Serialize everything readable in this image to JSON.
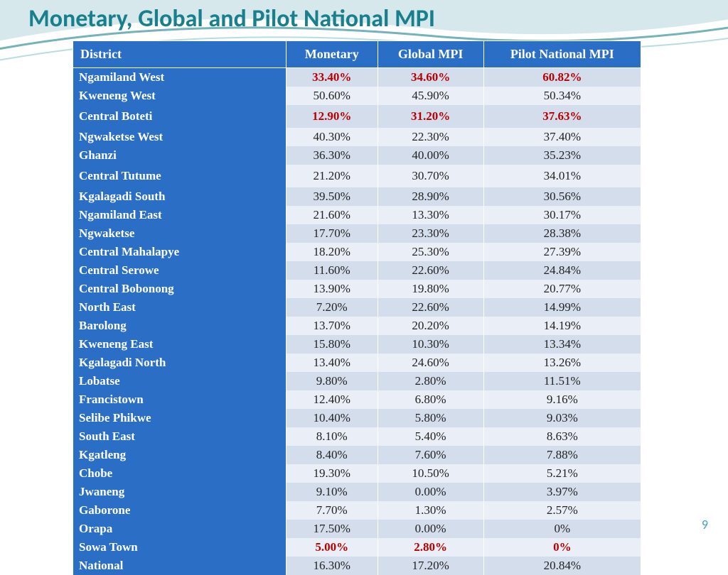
{
  "title": "Monetary, Global and Pilot National MPI",
  "page_number": "9",
  "columns": [
    "District",
    "Monetary",
    "Global MPI",
    "Pilot National MPI"
  ],
  "colors": {
    "header_bg": "#2a6ec6",
    "district_bg": "#2a6ec6",
    "row_even_bg": "#d4ddec",
    "row_odd_bg": "#eaeef6",
    "highlight_text": "#b80000",
    "title_color": "#17808c",
    "page_number_color": "#4aa5b0"
  },
  "rows": [
    {
      "district": "Ngamiland West",
      "monetary": "33.40%",
      "global": "34.60%",
      "pilot": "60.82%",
      "highlight": true,
      "sep": false
    },
    {
      "district": "Kweneng West",
      "monetary": "50.60%",
      "global": "45.90%",
      "pilot": "50.34%",
      "highlight": false,
      "sep": false
    },
    {
      "district": "Central Boteti",
      "monetary": "12.90%",
      "global": "31.20%",
      "pilot": "37.63%",
      "highlight": true,
      "sep": true
    },
    {
      "district": "Ngwaketse West",
      "monetary": "40.30%",
      "global": "22.30%",
      "pilot": "37.40%",
      "highlight": false,
      "sep": false
    },
    {
      "district": "Ghanzi",
      "monetary": "36.30%",
      "global": "40.00%",
      "pilot": "35.23%",
      "highlight": false,
      "sep": false
    },
    {
      "district": "Central Tutume",
      "monetary": "21.20%",
      "global": "30.70%",
      "pilot": "34.01%",
      "highlight": false,
      "sep": true
    },
    {
      "district": "Kgalagadi South",
      "monetary": "39.50%",
      "global": "28.90%",
      "pilot": "30.56%",
      "highlight": false,
      "sep": false
    },
    {
      "district": "Ngamiland East",
      "monetary": "21.60%",
      "global": "13.30%",
      "pilot": "30.17%",
      "highlight": false,
      "sep": false
    },
    {
      "district": "Ngwaketse",
      "monetary": "17.70%",
      "global": "23.30%",
      "pilot": "28.38%",
      "highlight": false,
      "sep": false
    },
    {
      "district": "Central Mahalapye",
      "monetary": "18.20%",
      "global": "25.30%",
      "pilot": "27.39%",
      "highlight": false,
      "sep": false
    },
    {
      "district": "Central Serowe",
      "monetary": "11.60%",
      "global": "22.60%",
      "pilot": "24.84%",
      "highlight": false,
      "sep": false
    },
    {
      "district": "Central Bobonong",
      "monetary": "13.90%",
      "global": "19.80%",
      "pilot": "20.77%",
      "highlight": false,
      "sep": false
    },
    {
      "district": "North East",
      "monetary": "7.20%",
      "global": "22.60%",
      "pilot": "14.99%",
      "highlight": false,
      "sep": false
    },
    {
      "district": "Barolong",
      "monetary": "13.70%",
      "global": "20.20%",
      "pilot": "14.19%",
      "highlight": false,
      "sep": false
    },
    {
      "district": "Kweneng East",
      "monetary": "15.80%",
      "global": "10.30%",
      "pilot": "13.34%",
      "highlight": false,
      "sep": false
    },
    {
      "district": "Kgalagadi North",
      "monetary": "13.40%",
      "global": "24.60%",
      "pilot": "13.26%",
      "highlight": false,
      "sep": false
    },
    {
      "district": "Lobatse",
      "monetary": "9.80%",
      "global": "2.80%",
      "pilot": "11.51%",
      "highlight": false,
      "sep": false
    },
    {
      "district": "Francistown",
      "monetary": "12.40%",
      "global": "6.80%",
      "pilot": "9.16%",
      "highlight": false,
      "sep": false
    },
    {
      "district": "Selibe Phikwe",
      "monetary": "10.40%",
      "global": "5.80%",
      "pilot": "9.03%",
      "highlight": false,
      "sep": false
    },
    {
      "district": "South East",
      "monetary": "8.10%",
      "global": "5.40%",
      "pilot": "8.63%",
      "highlight": false,
      "sep": false
    },
    {
      "district": "Kgatleng",
      "monetary": "8.40%",
      "global": "7.60%",
      "pilot": "7.88%",
      "highlight": false,
      "sep": false
    },
    {
      "district": "Chobe",
      "monetary": "19.30%",
      "global": "10.50%",
      "pilot": "5.21%",
      "highlight": false,
      "sep": false
    },
    {
      "district": "Jwaneng",
      "monetary": "9.10%",
      "global": "0.00%",
      "pilot": "3.97%",
      "highlight": false,
      "sep": false
    },
    {
      "district": "Gaborone",
      "monetary": "7.70%",
      "global": "1.30%",
      "pilot": "2.57%",
      "highlight": false,
      "sep": false
    },
    {
      "district": "Orapa",
      "monetary": "17.50%",
      "global": "0.00%",
      "pilot": "0%",
      "highlight": false,
      "sep": false
    },
    {
      "district": "Sowa Town",
      "monetary": "5.00%",
      "global": "2.80%",
      "pilot": "0%",
      "highlight": true,
      "sep": false
    },
    {
      "district": "National",
      "monetary": "16.30%",
      "global": "17.20%",
      "pilot": "20.84%",
      "highlight": false,
      "sep": false
    }
  ]
}
